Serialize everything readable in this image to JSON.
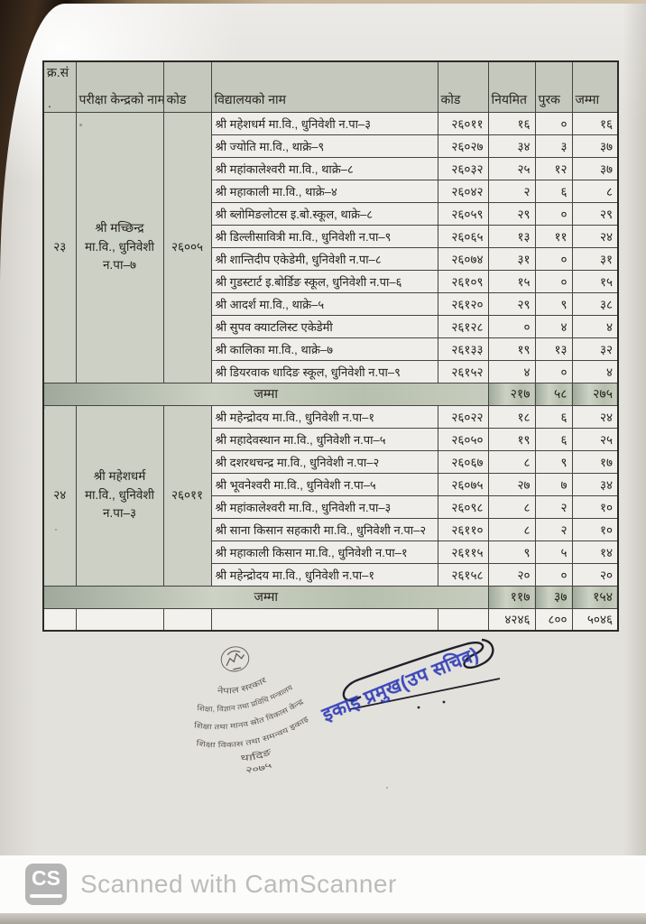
{
  "table": {
    "headers": {
      "sn": "क्र.सं",
      "sn_dot": ".",
      "center": "परीक्षा केन्द्रको नाम",
      "code1": "कोड",
      "school": "विद्यालयको नाम",
      "code2": "कोड",
      "regular": "नियमित",
      "supplementary": "पुरक",
      "total": "जम्मा"
    },
    "groups": [
      {
        "sn": "२३",
        "center_name": "श्री मच्छिन्द्र मा.वि., धुनिवेशी न.पा–७",
        "center_code": "२६००५",
        "schools": [
          {
            "name": "श्री महेशधर्म मा.वि., धुनिवेशी न.पा–३",
            "code": "२६०११",
            "regular": "१६",
            "supplementary": "०",
            "total": "१६"
          },
          {
            "name": "श्री ज्योति मा.वि., थाक्रे–९",
            "code": "२६०२७",
            "regular": "३४",
            "supplementary": "३",
            "total": "३७"
          },
          {
            "name": "श्री महांकालेश्वरी मा.वि., थाक्रे–८",
            "code": "२६०३२",
            "regular": "२५",
            "supplementary": "१२",
            "total": "३७"
          },
          {
            "name": "श्री महाकाली मा.वि., थाक्रे–४",
            "code": "२६०४२",
            "regular": "२",
            "supplementary": "६",
            "total": "८"
          },
          {
            "name": "श्री ब्लोमिङलोटस इ.बो.स्कूल, थाक्रे–८",
            "code": "२६०५९",
            "regular": "२९",
            "supplementary": "०",
            "total": "२९"
          },
          {
            "name": "श्री डिल्लीसावित्री मा.वि., धुनिवेशी न.पा–९",
            "code": "२६०६५",
            "regular": "१३",
            "supplementary": "११",
            "total": "२४"
          },
          {
            "name": "श्री शान्तिदीप एकेडेमी, धुनिवेशी न.पा–८",
            "code": "२६०७४",
            "regular": "३१",
            "supplementary": "०",
            "total": "३१"
          },
          {
            "name": "श्री गुडस्टार्ट इ.बोर्डिङ स्कूल, धुनिवेशी न.पा–६",
            "code": "२६१०९",
            "regular": "१५",
            "supplementary": "०",
            "total": "१५"
          },
          {
            "name": "श्री आदर्श मा.वि., थाक्रे–५",
            "code": "२६१२०",
            "regular": "२९",
            "supplementary": "९",
            "total": "३८"
          },
          {
            "name": "श्री सुपव क्याटलिस्ट एकेडेमी",
            "code": "२६१२८",
            "regular": "०",
            "supplementary": "४",
            "total": "४"
          },
          {
            "name": "श्री कालिका मा.वि., थाक्रे–७",
            "code": "२६१३३",
            "regular": "१९",
            "supplementary": "१३",
            "total": "३२"
          },
          {
            "name": "श्री डियरवाक धादिङ स्कूल, धुनिवेशी न.पा–९",
            "code": "२६१५२",
            "regular": "४",
            "supplementary": "०",
            "total": "४"
          }
        ],
        "subtotal": {
          "label": "जम्मा",
          "regular": "२१७",
          "supplementary": "५८",
          "total": "२७५"
        }
      },
      {
        "sn": "२४",
        "center_name": "श्री महेशधर्म मा.वि., धुनिवेशी न.पा–३",
        "center_code": "२६०११",
        "schools": [
          {
            "name": "श्री महेन्द्रोदय मा.वि., धुनिवेशी न.पा–१",
            "code": "२६०२२",
            "regular": "१८",
            "supplementary": "६",
            "total": "२४"
          },
          {
            "name": "श्री महादेवस्थान मा.वि., धुनिवेशी न.पा–५",
            "code": "२६०५०",
            "regular": "१९",
            "supplementary": "६",
            "total": "२५"
          },
          {
            "name": "श्री दशरथचन्द्र मा.वि., धुनिवेशी न.पा–२",
            "code": "२६०६७",
            "regular": "८",
            "supplementary": "९",
            "total": "१७"
          },
          {
            "name": "श्री भूवनेश्वरी मा.वि., धुनिवेशी न.पा–५",
            "code": "२६०७५",
            "regular": "२७",
            "supplementary": "७",
            "total": "३४"
          },
          {
            "name": "श्री महांकालेश्वरी मा.वि., धुनिवेशी न.पा–३",
            "code": "२६०९८",
            "regular": "८",
            "supplementary": "२",
            "total": "१०"
          },
          {
            "name": "श्री साना किसान सहकारी मा.वि., धुनिवेशी न.पा–२",
            "code": "२६११०",
            "regular": "८",
            "supplementary": "२",
            "total": "१०"
          },
          {
            "name": "श्री महाकाली किसान मा.वि., धुनिवेशी न.पा–१",
            "code": "२६११५",
            "regular": "९",
            "supplementary": "५",
            "total": "१४"
          },
          {
            "name": "श्री महेन्द्रोदय मा.वि., धुनिवेशी न.पा–१",
            "code": "२६१५८",
            "regular": "२०",
            "supplementary": "०",
            "total": "२०"
          }
        ],
        "subtotal": {
          "label": "जम्मा",
          "regular": "११७",
          "supplementary": "३७",
          "total": "१५४"
        }
      }
    ],
    "grand_total": {
      "regular": "४२४६",
      "supplementary": "८००",
      "total": "५०४६"
    }
  },
  "seal": {
    "lines": [
      "नेपाल सरकार",
      "शिक्षा, विज्ञान तथा प्रविधि मन्त्रालय",
      "शिक्षा तथा मानव स्रोत विकास केन्द्र",
      "शिक्षा विकास तथा समन्वय इकाइ",
      "धादिङ",
      "२०७५"
    ],
    "ink_color": "#4b453d"
  },
  "stamps": {
    "blue": {
      "text": "इकाइ प्रमुख(उप सचिव)",
      "color": "#2f3db8"
    }
  },
  "watermark": {
    "logo": "CS",
    "text": "Scanned with CamScanner",
    "color": "#bdbcba"
  }
}
